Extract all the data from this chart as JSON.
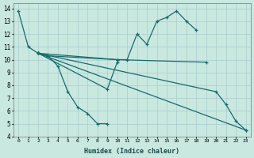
{
  "xlabel": "Humidex (Indice chaleur)",
  "bg_color": "#c8e8e0",
  "grid_color": "#aacccc",
  "line_color": "#1a6b6b",
  "series": [
    {
      "x": [
        0,
        1,
        2,
        3,
        4,
        5,
        6,
        7,
        8,
        9
      ],
      "y": [
        13.8,
        11.0,
        10.5,
        10.3,
        9.5,
        7.5,
        6.3,
        5.8,
        5.0,
        5.0
      ]
    },
    {
      "x": [
        2,
        3,
        10,
        11,
        12,
        13,
        14,
        15,
        16,
        17,
        18
      ],
      "y": [
        10.5,
        10.3,
        10.0,
        10.0,
        12.0,
        11.2,
        13.0,
        13.3,
        13.8,
        13.0,
        12.3
      ]
    },
    {
      "x": [
        2,
        9,
        10
      ],
      "y": [
        10.5,
        7.7,
        9.8
      ]
    },
    {
      "x": [
        2,
        10,
        19
      ],
      "y": [
        10.5,
        10.0,
        9.8
      ]
    },
    {
      "x": [
        2,
        23
      ],
      "y": [
        10.5,
        4.5
      ]
    },
    {
      "x": [
        2,
        20,
        21,
        22,
        23
      ],
      "y": [
        10.5,
        7.5,
        6.5,
        5.2,
        4.5
      ]
    }
  ],
  "xlim": [
    -0.5,
    23.5
  ],
  "ylim": [
    4,
    14.4
  ],
  "xticks": [
    0,
    1,
    2,
    3,
    4,
    5,
    6,
    7,
    8,
    9,
    10,
    11,
    12,
    13,
    14,
    15,
    16,
    17,
    18,
    19,
    20,
    21,
    22,
    23
  ],
  "yticks": [
    4,
    5,
    6,
    7,
    8,
    9,
    10,
    11,
    12,
    13,
    14
  ]
}
